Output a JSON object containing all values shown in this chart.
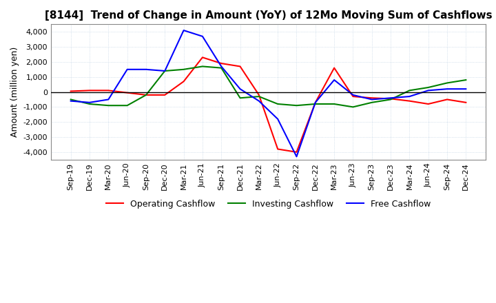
{
  "title": "[8144]  Trend of Change in Amount (YoY) of 12Mo Moving Sum of Cashflows",
  "ylabel": "Amount (million yen)",
  "ylim": [
    -4500,
    4500
  ],
  "yticks": [
    -4000,
    -3000,
    -2000,
    -1000,
    0,
    1000,
    2000,
    3000,
    4000
  ],
  "x_labels": [
    "Sep-19",
    "Dec-19",
    "Mar-20",
    "Jun-20",
    "Sep-20",
    "Dec-20",
    "Mar-21",
    "Jun-21",
    "Sep-21",
    "Dec-21",
    "Mar-22",
    "Jun-22",
    "Sep-22",
    "Dec-22",
    "Mar-23",
    "Jun-23",
    "Sep-23",
    "Dec-23",
    "Mar-24",
    "Jun-24",
    "Sep-24",
    "Dec-24"
  ],
  "operating": [
    50,
    100,
    100,
    -50,
    -200,
    -200,
    700,
    2300,
    1900,
    1700,
    -200,
    -3800,
    -4000,
    -700,
    1600,
    -300,
    -400,
    -450,
    -600,
    -800,
    -500,
    -700
  ],
  "investing": [
    -500,
    -800,
    -900,
    -900,
    -200,
    1400,
    1500,
    1700,
    1600,
    -400,
    -300,
    -800,
    -900,
    -800,
    -800,
    -1000,
    -700,
    -500,
    100,
    300,
    600,
    800
  ],
  "free": [
    -600,
    -700,
    -500,
    1500,
    1500,
    1400,
    4100,
    3700,
    1700,
    200,
    -600,
    -1800,
    -4300,
    -700,
    800,
    -200,
    -500,
    -400,
    -300,
    100,
    200,
    200
  ],
  "operating_color": "#ff0000",
  "investing_color": "#008000",
  "free_color": "#0000ff",
  "background_color": "#ffffff",
  "grid_color": "#b8cce0"
}
